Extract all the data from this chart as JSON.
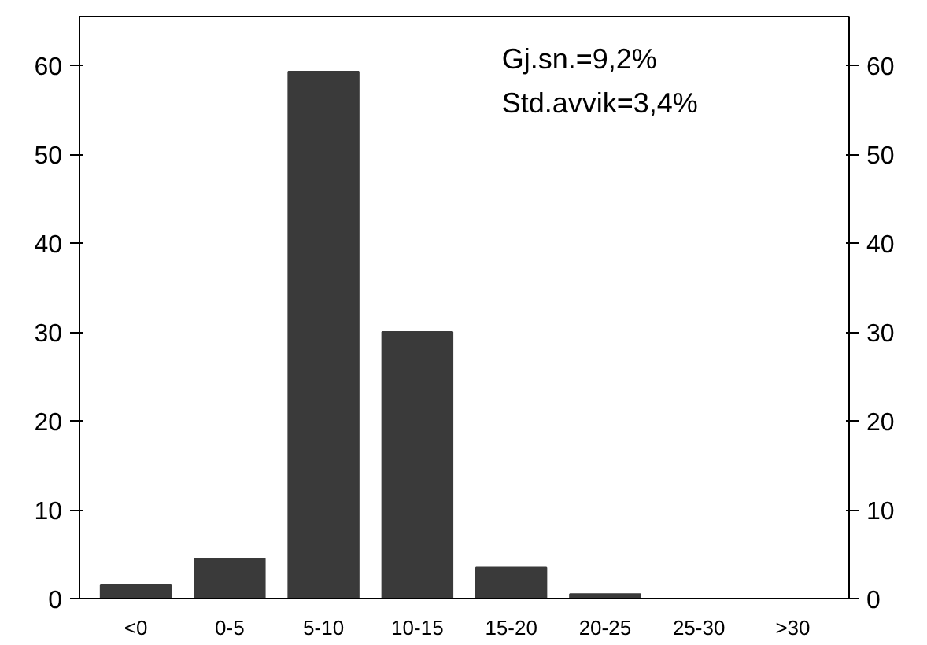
{
  "chart_data": {
    "type": "bar",
    "categories": [
      "<0",
      "0-5",
      "5-10",
      "10-15",
      "15-20",
      "20-25",
      "25-30",
      ">30"
    ],
    "values": [
      1.5,
      4.5,
      59.3,
      30,
      3.5,
      0.5,
      0,
      0
    ],
    "color": "#3a3a3a",
    "ylim": [
      0,
      65.5
    ],
    "yticks": [
      0,
      10,
      20,
      30,
      40,
      50,
      60
    ],
    "y2lim": [
      0,
      65.5
    ],
    "y2ticks": [
      0,
      10,
      20,
      30,
      40,
      50,
      60
    ],
    "annotations": [
      "Gj.sn.=9,2%",
      "Std.avvik=3,4%"
    ],
    "grid": false
  }
}
